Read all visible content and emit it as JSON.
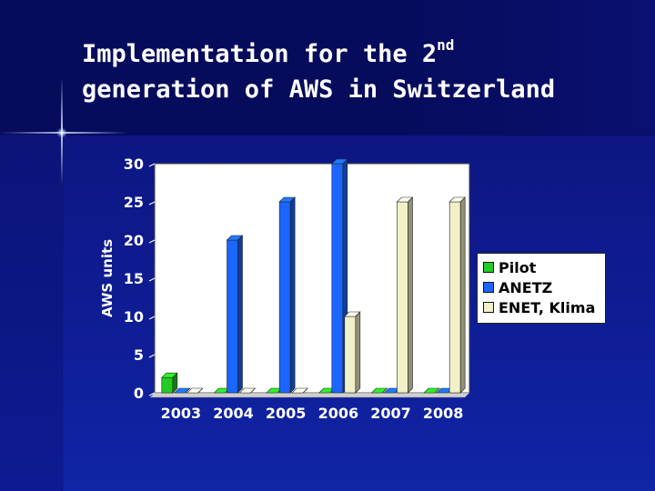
{
  "slide": {
    "title_part1": "Implementation for the 2",
    "title_sup": "nd",
    "title_part2": "generation of AWS in Switzerland"
  },
  "chart_data": {
    "type": "bar",
    "title": "",
    "xlabel": "",
    "ylabel": "AWS units",
    "categories": [
      "2003",
      "2004",
      "2005",
      "2006",
      "2007",
      "2008"
    ],
    "ylim": [
      0,
      30
    ],
    "yticks": [
      0,
      5,
      10,
      15,
      20,
      25,
      30
    ],
    "grid": false,
    "legend_position": "right",
    "series": [
      {
        "name": "Pilot",
        "color": "#22cc22",
        "values": [
          2,
          0,
          0,
          0,
          0,
          0
        ]
      },
      {
        "name": "ANETZ",
        "color": "#1a66ff",
        "values": [
          0,
          20,
          25,
          30,
          0,
          0
        ]
      },
      {
        "name": "ENET, Klima",
        "color": "#f2f0c8",
        "values": [
          0,
          0,
          0,
          10,
          25,
          25
        ]
      }
    ]
  }
}
